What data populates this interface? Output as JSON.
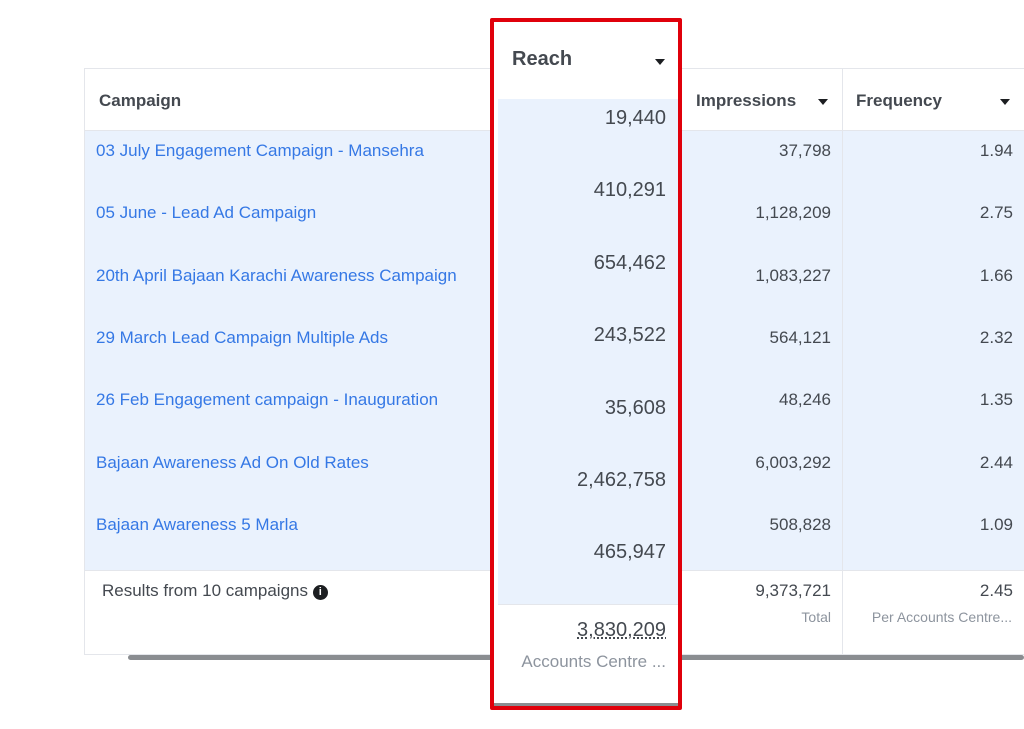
{
  "headers": {
    "campaign": "Campaign",
    "reach": "Reach",
    "impressions": "Impressions",
    "frequency": "Frequency"
  },
  "rows": [
    {
      "campaign": "03 July Engagement Campaign - Mansehra",
      "reach": "19,440",
      "impressions": "37,798",
      "frequency": "1.94"
    },
    {
      "campaign": "05 June - Lead Ad Campaign",
      "reach": "410,291",
      "impressions": "1,128,209",
      "frequency": "2.75"
    },
    {
      "campaign": "20th April Bajaan Karachi Awareness Campaign",
      "reach": "654,462",
      "impressions": "1,083,227",
      "frequency": "1.66"
    },
    {
      "campaign": "29 March Lead Campaign Multiple Ads",
      "reach": "243,522",
      "impressions": "564,121",
      "frequency": "2.32"
    },
    {
      "campaign": "26 Feb Engagement campaign - Inauguration",
      "reach": "35,608",
      "impressions": "48,246",
      "frequency": "1.35"
    },
    {
      "campaign": "Bajaan Awareness Ad On Old Rates",
      "reach": "2,462,758",
      "impressions": "6,003,292",
      "frequency": "2.44"
    },
    {
      "campaign": "Bajaan Awareness 5 Marla",
      "reach": "465,947",
      "impressions": "508,828",
      "frequency": "1.09"
    }
  ],
  "footer": {
    "results": "Results from 10 campaigns",
    "reach_total": "3,830,209",
    "reach_label": "Accounts Centre ...",
    "impressions_total": "9,373,721",
    "impressions_label": "Total",
    "frequency_total": "2.45",
    "frequency_label": "Per Accounts Centre..."
  },
  "colors": {
    "highlight": "#e0000b",
    "link": "#3578e5",
    "row_bg": "#eaf2fd"
  }
}
